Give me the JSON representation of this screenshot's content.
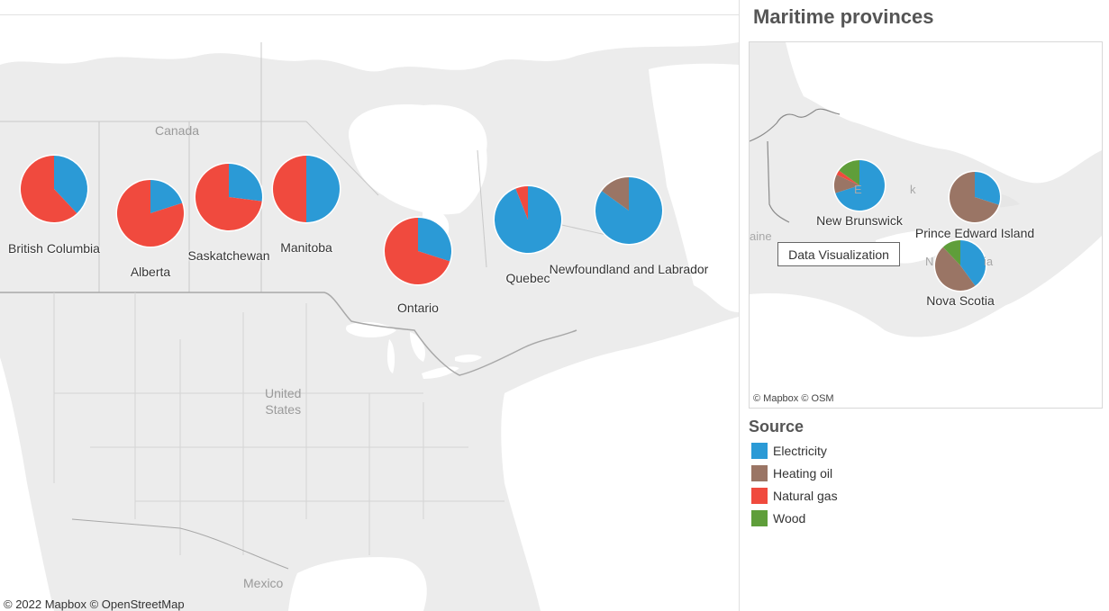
{
  "main_map": {
    "geo_labels": [
      "Canada",
      "United\nStates",
      "Mexico"
    ],
    "credit": "© 2022 Mapbox  © OpenStreetMap",
    "provinces": [
      {
        "name": "British Columbia",
        "shares": {
          "Electricity": 0.38,
          "Heating oil": 0.0,
          "Natural gas": 0.62,
          "Wood": 0.0
        }
      },
      {
        "name": "Alberta",
        "shares": {
          "Electricity": 0.2,
          "Heating oil": 0.0,
          "Natural gas": 0.8,
          "Wood": 0.0
        }
      },
      {
        "name": "Saskatchewan",
        "shares": {
          "Electricity": 0.27,
          "Heating oil": 0.0,
          "Natural gas": 0.73,
          "Wood": 0.0
        }
      },
      {
        "name": "Manitoba",
        "shares": {
          "Electricity": 0.5,
          "Heating oil": 0.0,
          "Natural gas": 0.5,
          "Wood": 0.0
        }
      },
      {
        "name": "Ontario",
        "shares": {
          "Electricity": 0.3,
          "Heating oil": 0.0,
          "Natural gas": 0.7,
          "Wood": 0.0
        }
      },
      {
        "name": "Quebec",
        "shares": {
          "Electricity": 0.94,
          "Heating oil": 0.0,
          "Natural gas": 0.06,
          "Wood": 0.0
        }
      },
      {
        "name": "Newfoundland and Labrador",
        "shares": {
          "Electricity": 0.85,
          "Heating oil": 0.15,
          "Natural gas": 0.0,
          "Wood": 0.0
        }
      }
    ]
  },
  "inset": {
    "title": "Maritime provinces",
    "credit": "© Mapbox  © OSM",
    "geo_fragments": [
      "aine",
      "E",
      "k",
      "N",
      "ia"
    ],
    "tooltip": "Data Visualization",
    "provinces": [
      {
        "name": "New Brunswick",
        "shares": {
          "Electricity": 0.7,
          "Heating oil": 0.12,
          "Natural gas": 0.03,
          "Wood": 0.15
        }
      },
      {
        "name": "Prince Edward Island",
        "shares": {
          "Electricity": 0.3,
          "Heating oil": 0.7,
          "Natural gas": 0.0,
          "Wood": 0.0
        }
      },
      {
        "name": "Nova Scotia",
        "shares": {
          "Electricity": 0.4,
          "Heating oil": 0.48,
          "Natural gas": 0.0,
          "Wood": 0.12
        }
      }
    ]
  },
  "legend": {
    "title": "Source",
    "items": [
      {
        "label": "Electricity",
        "color": "#2b9ad6"
      },
      {
        "label": "Heating oil",
        "color": "#9a7565"
      },
      {
        "label": "Natural gas",
        "color": "#f04a3e"
      },
      {
        "label": "Wood",
        "color": "#5f9e3a"
      }
    ]
  }
}
